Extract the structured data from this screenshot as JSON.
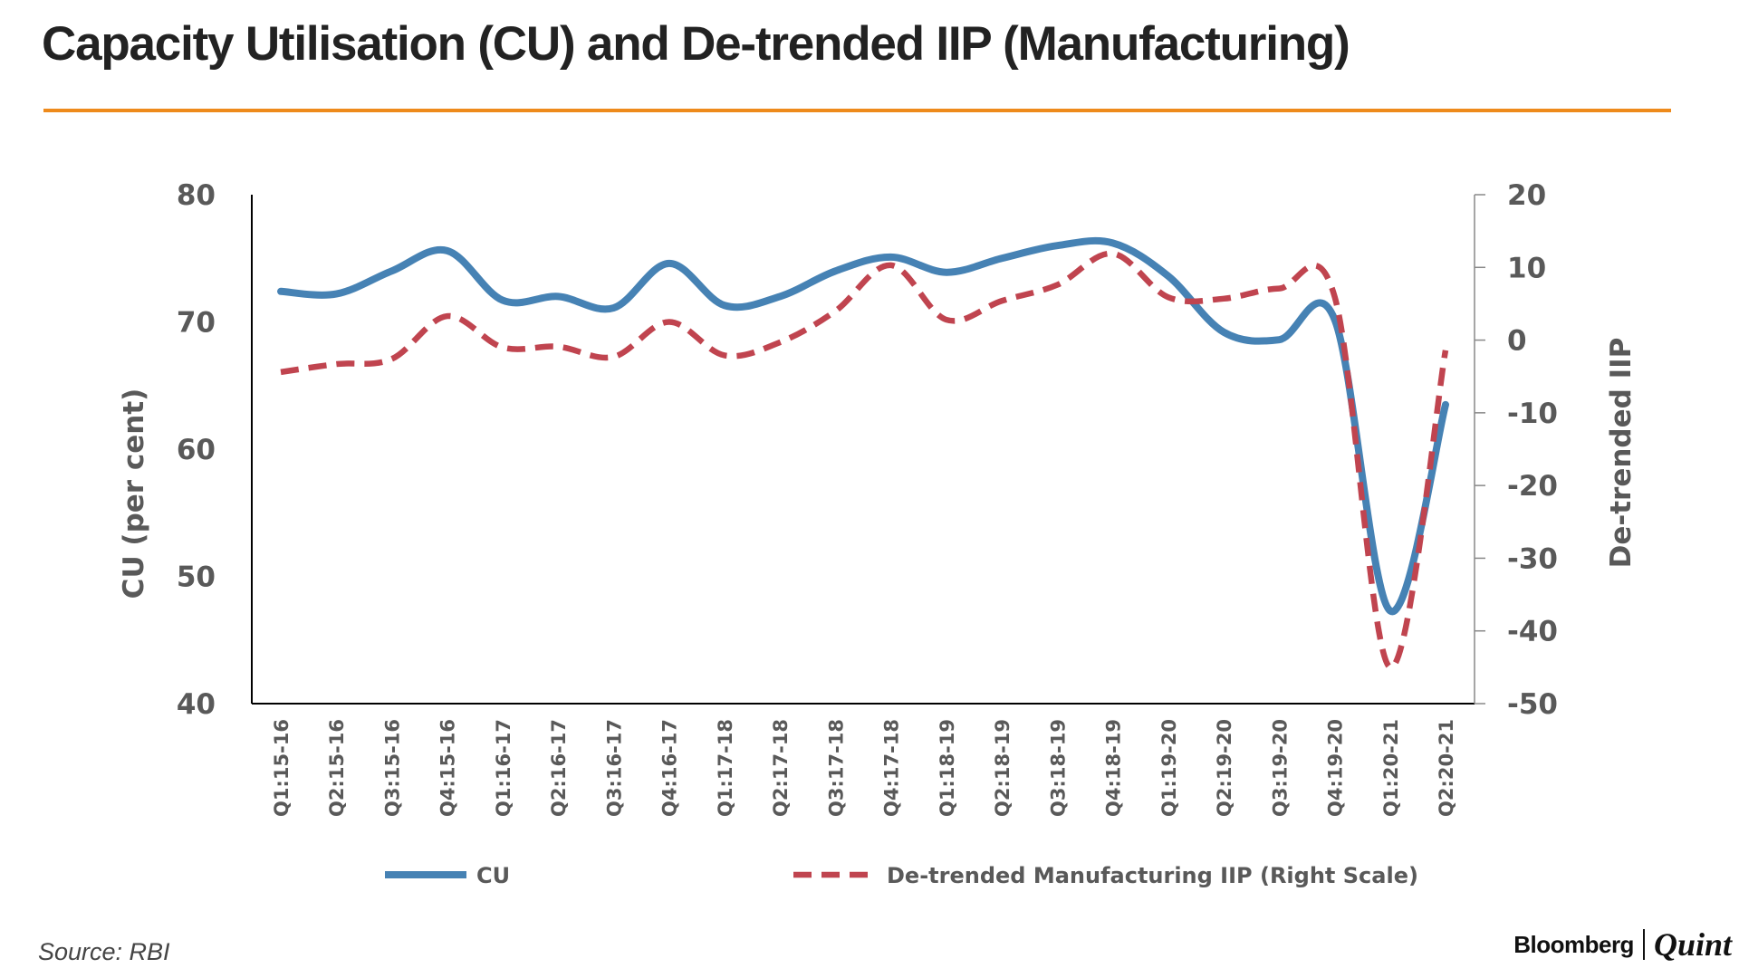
{
  "chart_data": {
    "type": "line",
    "title": "Capacity Utilisation (CU) and De-trended IIP (Manufacturing)",
    "categories": [
      "Q1:15-16",
      "Q2:15-16",
      "Q3:15-16",
      "Q4:15-16",
      "Q1:16-17",
      "Q2:16-17",
      "Q3:16-17",
      "Q4:16-17",
      "Q1:17-18",
      "Q2:17-18",
      "Q3:17-18",
      "Q4:17-18",
      "Q1:18-19",
      "Q2:18-19",
      "Q3:18-19",
      "Q4:18-19",
      "Q1:19-20",
      "Q2:19-20",
      "Q3:19-20",
      "Q4:19-20",
      "Q1:20-21",
      "Q2:20-21"
    ],
    "ylabel": "CU (per cent)",
    "ylabel_right": "De-trended IIP",
    "ylim": [
      40,
      80
    ],
    "yticks": [
      80,
      70,
      60,
      50,
      40
    ],
    "ylim_right": [
      -50,
      20
    ],
    "yticks_right": [
      20,
      10,
      0,
      -10,
      -20,
      -30,
      -40,
      -50
    ],
    "grid": false,
    "legend_position": "bottom",
    "series": [
      {
        "name": "CU",
        "axis": "left",
        "style": "solid",
        "color": "#4682B4",
        "values": [
          72.4,
          72.2,
          74.0,
          75.6,
          71.7,
          72.0,
          71.1,
          74.6,
          71.3,
          72.0,
          74.0,
          75.1,
          73.9,
          75.0,
          76.0,
          76.2,
          73.6,
          69.2,
          68.6,
          70.2,
          47.3,
          63.5
        ]
      },
      {
        "name": "De-trended Manufacturing IIP (Right Scale)",
        "axis": "right",
        "style": "dashed",
        "color": "#C0444F",
        "values": [
          -4.4,
          -3.3,
          -2.6,
          3.3,
          -1.0,
          -0.9,
          -2.3,
          2.5,
          -2.1,
          -0.3,
          4.0,
          10.3,
          2.8,
          5.4,
          7.6,
          11.9,
          5.9,
          5.7,
          7.1,
          6.0,
          -45.0,
          -1.4
        ]
      }
    ]
  },
  "accent_color": "#EE8A1B",
  "source": "Source: RBI",
  "logo": {
    "brand": "Bloomberg",
    "sub": "Quint"
  }
}
